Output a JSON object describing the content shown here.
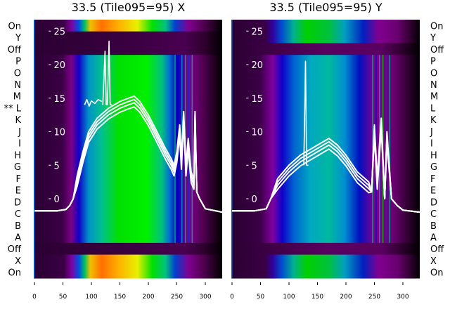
{
  "chart_data": [
    {
      "type": "heatmap",
      "title": "33.5 (Tile095=95) X",
      "row_labels": [
        "On",
        "Y",
        "Off",
        "P",
        "O",
        "N",
        "M",
        "** L",
        "K",
        "J",
        "I",
        "H",
        "G",
        "F",
        "E",
        "D",
        "C",
        "B",
        "A",
        "Off",
        "X",
        "On"
      ],
      "row_label_side": "left",
      "x_ticks": [
        0,
        50,
        100,
        150,
        200,
        250,
        300
      ],
      "xlim": [
        0,
        330
      ],
      "y_ticks": [
        0,
        5,
        10,
        15,
        20,
        25
      ],
      "ylim": [
        -9,
        28
      ],
      "series": [
        {
          "name": "trace",
          "color": "#ffffff",
          "x": [
            0,
            40,
            55,
            62,
            68,
            75,
            85,
            95,
            110,
            130,
            150,
            165,
            175,
            185,
            200,
            215,
            230,
            240,
            245,
            250,
            255,
            258,
            262,
            266,
            270,
            275,
            280,
            282,
            285,
            290,
            300,
            330
          ],
          "y": [
            -1.8,
            -1.8,
            -1.6,
            -1,
            0,
            2.5,
            6,
            9,
            11,
            12.5,
            13.5,
            14,
            14.3,
            13.5,
            11.5,
            9,
            6.5,
            5,
            4,
            6,
            10,
            5,
            12,
            4,
            8,
            3,
            2,
            12,
            1,
            0,
            -1.5,
            -2
          ]
        },
        {
          "name": "spike",
          "color": "#ffffff",
          "x": [
            120,
            124,
            126,
            128,
            131,
            133,
            136
          ],
          "y": [
            14,
            22,
            14,
            14,
            23.5,
            14,
            14
          ]
        },
        {
          "name": "upper-trace",
          "color": "#ffffff",
          "x": [
            88,
            92,
            96,
            100,
            106,
            112,
            118
          ],
          "y": [
            14,
            14.8,
            13.8,
            14.6,
            14.2,
            14.8,
            14.5
          ]
        }
      ]
    },
    {
      "type": "heatmap",
      "title": "33.5 (Tile095=95) Y",
      "row_labels": [
        "On",
        "Y",
        "Off",
        "P",
        "O",
        "N",
        "M",
        "L",
        "K",
        "J",
        "I",
        "H",
        "G",
        "F",
        "E",
        "D",
        "C",
        "B",
        "A",
        "Off",
        "X",
        "On"
      ],
      "row_label_side": "right",
      "x_ticks": [
        0,
        50,
        100,
        150,
        200,
        250,
        300
      ],
      "xlim": [
        0,
        330
      ],
      "y_ticks": [
        0,
        5,
        10,
        15,
        20,
        25
      ],
      "ylim": [
        -9,
        28
      ],
      "series": [
        {
          "name": "trace",
          "color": "#ffffff",
          "x": [
            0,
            40,
            60,
            68,
            80,
            100,
            120,
            150,
            170,
            185,
            200,
            220,
            240,
            245,
            250,
            255,
            262,
            268,
            272,
            280,
            290,
            300,
            330
          ],
          "y": [
            -1.8,
            -1.8,
            -1.5,
            0,
            2,
            4,
            5.5,
            7,
            8,
            7,
            5.5,
            3,
            1.5,
            1,
            10,
            2,
            11,
            0,
            9,
            0,
            -1,
            -1.7,
            -2
          ]
        },
        {
          "name": "spike",
          "color": "#ffffff",
          "x": [
            126,
            129,
            131,
            134
          ],
          "y": [
            5,
            20.5,
            5,
            5
          ]
        }
      ]
    }
  ]
}
